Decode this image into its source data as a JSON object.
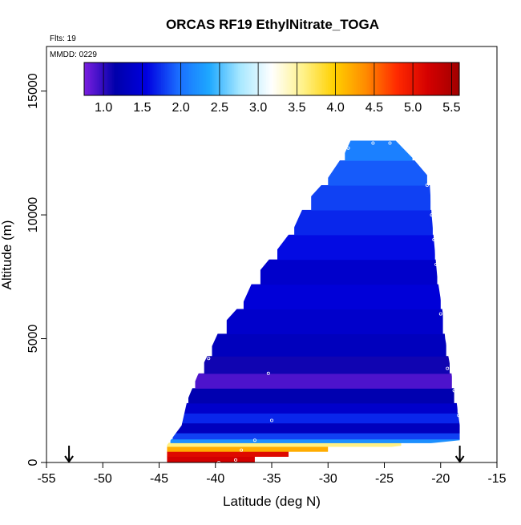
{
  "chart_data": {
    "type": "heatmap",
    "title": "ORCAS RF19 EthylNitrate_TOGA",
    "annotations": {
      "flights": "Flts: 19",
      "date": "MMDD: 0229"
    },
    "xlabel": "Latitude (deg N)",
    "ylabel": "Altitude (m)",
    "xlim": [
      -55,
      -15
    ],
    "ylim": [
      0,
      16800
    ],
    "xticks": [
      "-55",
      "-50",
      "-45",
      "-40",
      "-35",
      "-30",
      "-25",
      "-20",
      "-15"
    ],
    "xtick_values": [
      -55,
      -50,
      -45,
      -40,
      -35,
      -30,
      -25,
      -20,
      -15
    ],
    "yticks": [
      "0",
      "5000",
      "10000",
      "15000"
    ],
    "ytick_values": [
      0,
      5000,
      10000,
      15000
    ],
    "colorbar": {
      "range": [
        0.75,
        5.6
      ],
      "ticks": [
        "1.0",
        "1.5",
        "2.0",
        "2.5",
        "3.0",
        "3.5",
        "4.0",
        "4.5",
        "5.0",
        "5.5"
      ],
      "tick_values": [
        1.0,
        1.5,
        2.0,
        2.5,
        3.0,
        3.5,
        4.0,
        4.5,
        5.0,
        5.5
      ],
      "color_stops": [
        "#7b1fe0",
        "#0000aa",
        "#0000e0",
        "#1a6cff",
        "#1ea8ff",
        "#a8e8ff",
        "#ffffff",
        "#fff28a",
        "#ffd000",
        "#ff8c00",
        "#ff2a00",
        "#d40000",
        "#a00000"
      ]
    },
    "arrows_latitude": [
      -53.0,
      -18.3
    ],
    "envelope": {
      "left": [
        [
          -44.3,
          0
        ],
        [
          -44.3,
          700
        ],
        [
          -43.0,
          1500
        ],
        [
          -42.5,
          2500
        ],
        [
          -41.6,
          3500
        ],
        [
          -40.5,
          4500
        ],
        [
          -39.5,
          5500
        ],
        [
          -37.5,
          6500
        ],
        [
          -36.5,
          7500
        ],
        [
          -34.5,
          8600
        ],
        [
          -33.0,
          9500
        ],
        [
          -32.0,
          10500
        ],
        [
          -30.0,
          11500
        ],
        [
          -28.5,
          12500
        ],
        [
          -28.0,
          13000
        ]
      ],
      "right": [
        [
          -24.0,
          13000
        ],
        [
          -22.5,
          12300
        ],
        [
          -21.0,
          11500
        ],
        [
          -20.8,
          10000
        ],
        [
          -20.6,
          9000
        ],
        [
          -20.3,
          7500
        ],
        [
          -19.8,
          6000
        ],
        [
          -19.6,
          5000
        ],
        [
          -19.2,
          4000
        ],
        [
          -18.6,
          2500
        ],
        [
          -18.3,
          1500
        ],
        [
          -18.3,
          900
        ],
        [
          -22.5,
          700
        ],
        [
          -23.0,
          700
        ],
        [
          -25.0,
          600
        ],
        [
          -29.0,
          400
        ],
        [
          -32.0,
          300
        ],
        [
          -34.0,
          200
        ],
        [
          -36.0,
          0
        ]
      ]
    },
    "layers": [
      {
        "y0": 0,
        "y1": 250,
        "x0": -44.3,
        "x1": -36.5,
        "value": 5.2
      },
      {
        "y0": 250,
        "y1": 450,
        "x0": -44.3,
        "x1": -33.5,
        "value": 5.1
      },
      {
        "y0": 450,
        "y1": 650,
        "x0": -44.3,
        "x1": -30.0,
        "value": 4.2
      },
      {
        "y0": 650,
        "y1": 800,
        "x0": -44.3,
        "x1": -23.5,
        "value": 3.6
      },
      {
        "y0": 800,
        "y1": 950,
        "x0": -44.0,
        "x1": -18.3,
        "value": 2.2
      },
      {
        "y0": 950,
        "y1": 1200,
        "x0": -43.8,
        "x1": -18.3,
        "value": 1.8
      },
      {
        "y0": 1200,
        "y1": 1600,
        "x0": -43.5,
        "x1": -18.3,
        "value": 1.3
      },
      {
        "y0": 1600,
        "y1": 2000,
        "x0": -43.2,
        "x1": -18.3,
        "value": 1.7
      },
      {
        "y0": 2000,
        "y1": 2400,
        "x0": -42.8,
        "x1": -18.5,
        "value": 1.4
      },
      {
        "y0": 2400,
        "y1": 3000,
        "x0": -42.4,
        "x1": -18.8,
        "value": 1.2
      },
      {
        "y0": 3000,
        "y1": 3600,
        "x0": -41.8,
        "x1": -19.0,
        "value": 0.9
      },
      {
        "y0": 3600,
        "y1": 4300,
        "x0": -41.0,
        "x1": -19.2,
        "value": 1.1
      },
      {
        "y0": 4300,
        "y1": 5200,
        "x0": -40.3,
        "x1": -19.5,
        "value": 1.3
      },
      {
        "y0": 5200,
        "y1": 6200,
        "x0": -39.0,
        "x1": -19.8,
        "value": 1.4
      },
      {
        "y0": 6200,
        "y1": 7200,
        "x0": -37.5,
        "x1": -20.0,
        "value": 1.5
      },
      {
        "y0": 7200,
        "y1": 8200,
        "x0": -36.0,
        "x1": -20.3,
        "value": 1.4
      },
      {
        "y0": 8200,
        "y1": 9200,
        "x0": -34.5,
        "x1": -20.5,
        "value": 1.6
      },
      {
        "y0": 9200,
        "y1": 10200,
        "x0": -33.0,
        "x1": -20.7,
        "value": 1.7
      },
      {
        "y0": 10200,
        "y1": 11200,
        "x0": -31.5,
        "x1": -20.9,
        "value": 1.8
      },
      {
        "y0": 11200,
        "y1": 12200,
        "x0": -30.0,
        "x1": -21.2,
        "value": 1.9
      },
      {
        "y0": 12200,
        "y1": 13000,
        "x0": -28.5,
        "x1": -22.5,
        "value": 2.1
      }
    ],
    "points": [
      {
        "x": -39.7,
        "y": 0
      },
      {
        "x": -38.2,
        "y": 100
      },
      {
        "x": -37.7,
        "y": 500
      },
      {
        "x": -36.5,
        "y": 900
      },
      {
        "x": -43.0,
        "y": 2000
      },
      {
        "x": -42.2,
        "y": 3000
      },
      {
        "x": -40.6,
        "y": 4200
      },
      {
        "x": -35.3,
        "y": 3600
      },
      {
        "x": -35.0,
        "y": 1700
      },
      {
        "x": -20.8,
        "y": 10000
      },
      {
        "x": -20.6,
        "y": 9000
      },
      {
        "x": -20.4,
        "y": 8000
      },
      {
        "x": -20.0,
        "y": 6000
      },
      {
        "x": -19.4,
        "y": 3800
      },
      {
        "x": -18.8,
        "y": 2900
      },
      {
        "x": -18.4,
        "y": 1900
      },
      {
        "x": -28.2,
        "y": 12700
      },
      {
        "x": -26.0,
        "y": 12900
      },
      {
        "x": -24.5,
        "y": 12900
      },
      {
        "x": -21.2,
        "y": 11200
      }
    ]
  }
}
